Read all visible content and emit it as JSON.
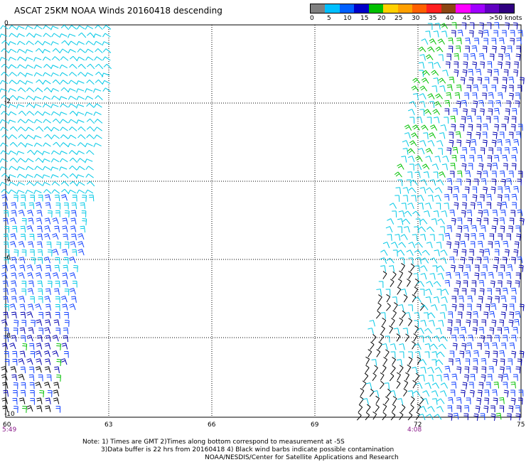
{
  "title": "ASCAT 25KM NOAA Winds 20160418 descending",
  "colorbar": {
    "segments": [
      {
        "color": "#808080"
      },
      {
        "color": "#00bfff"
      },
      {
        "color": "#0060ff"
      },
      {
        "color": "#0000c8"
      },
      {
        "color": "#00c000"
      },
      {
        "color": "#ffd000"
      },
      {
        "color": "#ffa000"
      },
      {
        "color": "#ff6000"
      },
      {
        "color": "#ff2020"
      },
      {
        "color": "#8b4513"
      },
      {
        "color": "#ff00ff"
      },
      {
        "color": "#a000ff"
      },
      {
        "color": "#6000c0"
      },
      {
        "color": "#300080"
      }
    ],
    "labels": [
      "0",
      "5",
      "10",
      "15",
      "20",
      "25",
      "30",
      "35",
      "40",
      "45",
      ">50 knots"
    ]
  },
  "axes": {
    "lat_labels": [
      "0",
      "-2",
      "-4",
      "-6",
      "-8",
      "-10"
    ],
    "lon_labels": [
      "60",
      "63",
      "66",
      "69",
      "72",
      "75"
    ],
    "lon_range": [
      60,
      75
    ],
    "lat_range": [
      0,
      -10
    ]
  },
  "times": {
    "left": "5:49",
    "right": "4:08"
  },
  "notes": [
    "Note: 1) Times are GMT 2)Times along bottom correspond to measurement at -5S",
    "3)Data buffer is 22 hrs from 20160418 4) Black wind barbs indicate possible contamination",
    "NOAA/NESDIS/Center for Satellite Applications and Research"
  ],
  "colors": {
    "barb_cyan": "#00c8e6",
    "barb_blue": "#1040ff",
    "barb_navy": "#0000b0",
    "barb_green": "#00c000",
    "barb_black": "#000000",
    "time_label": "#8a1a8a"
  }
}
